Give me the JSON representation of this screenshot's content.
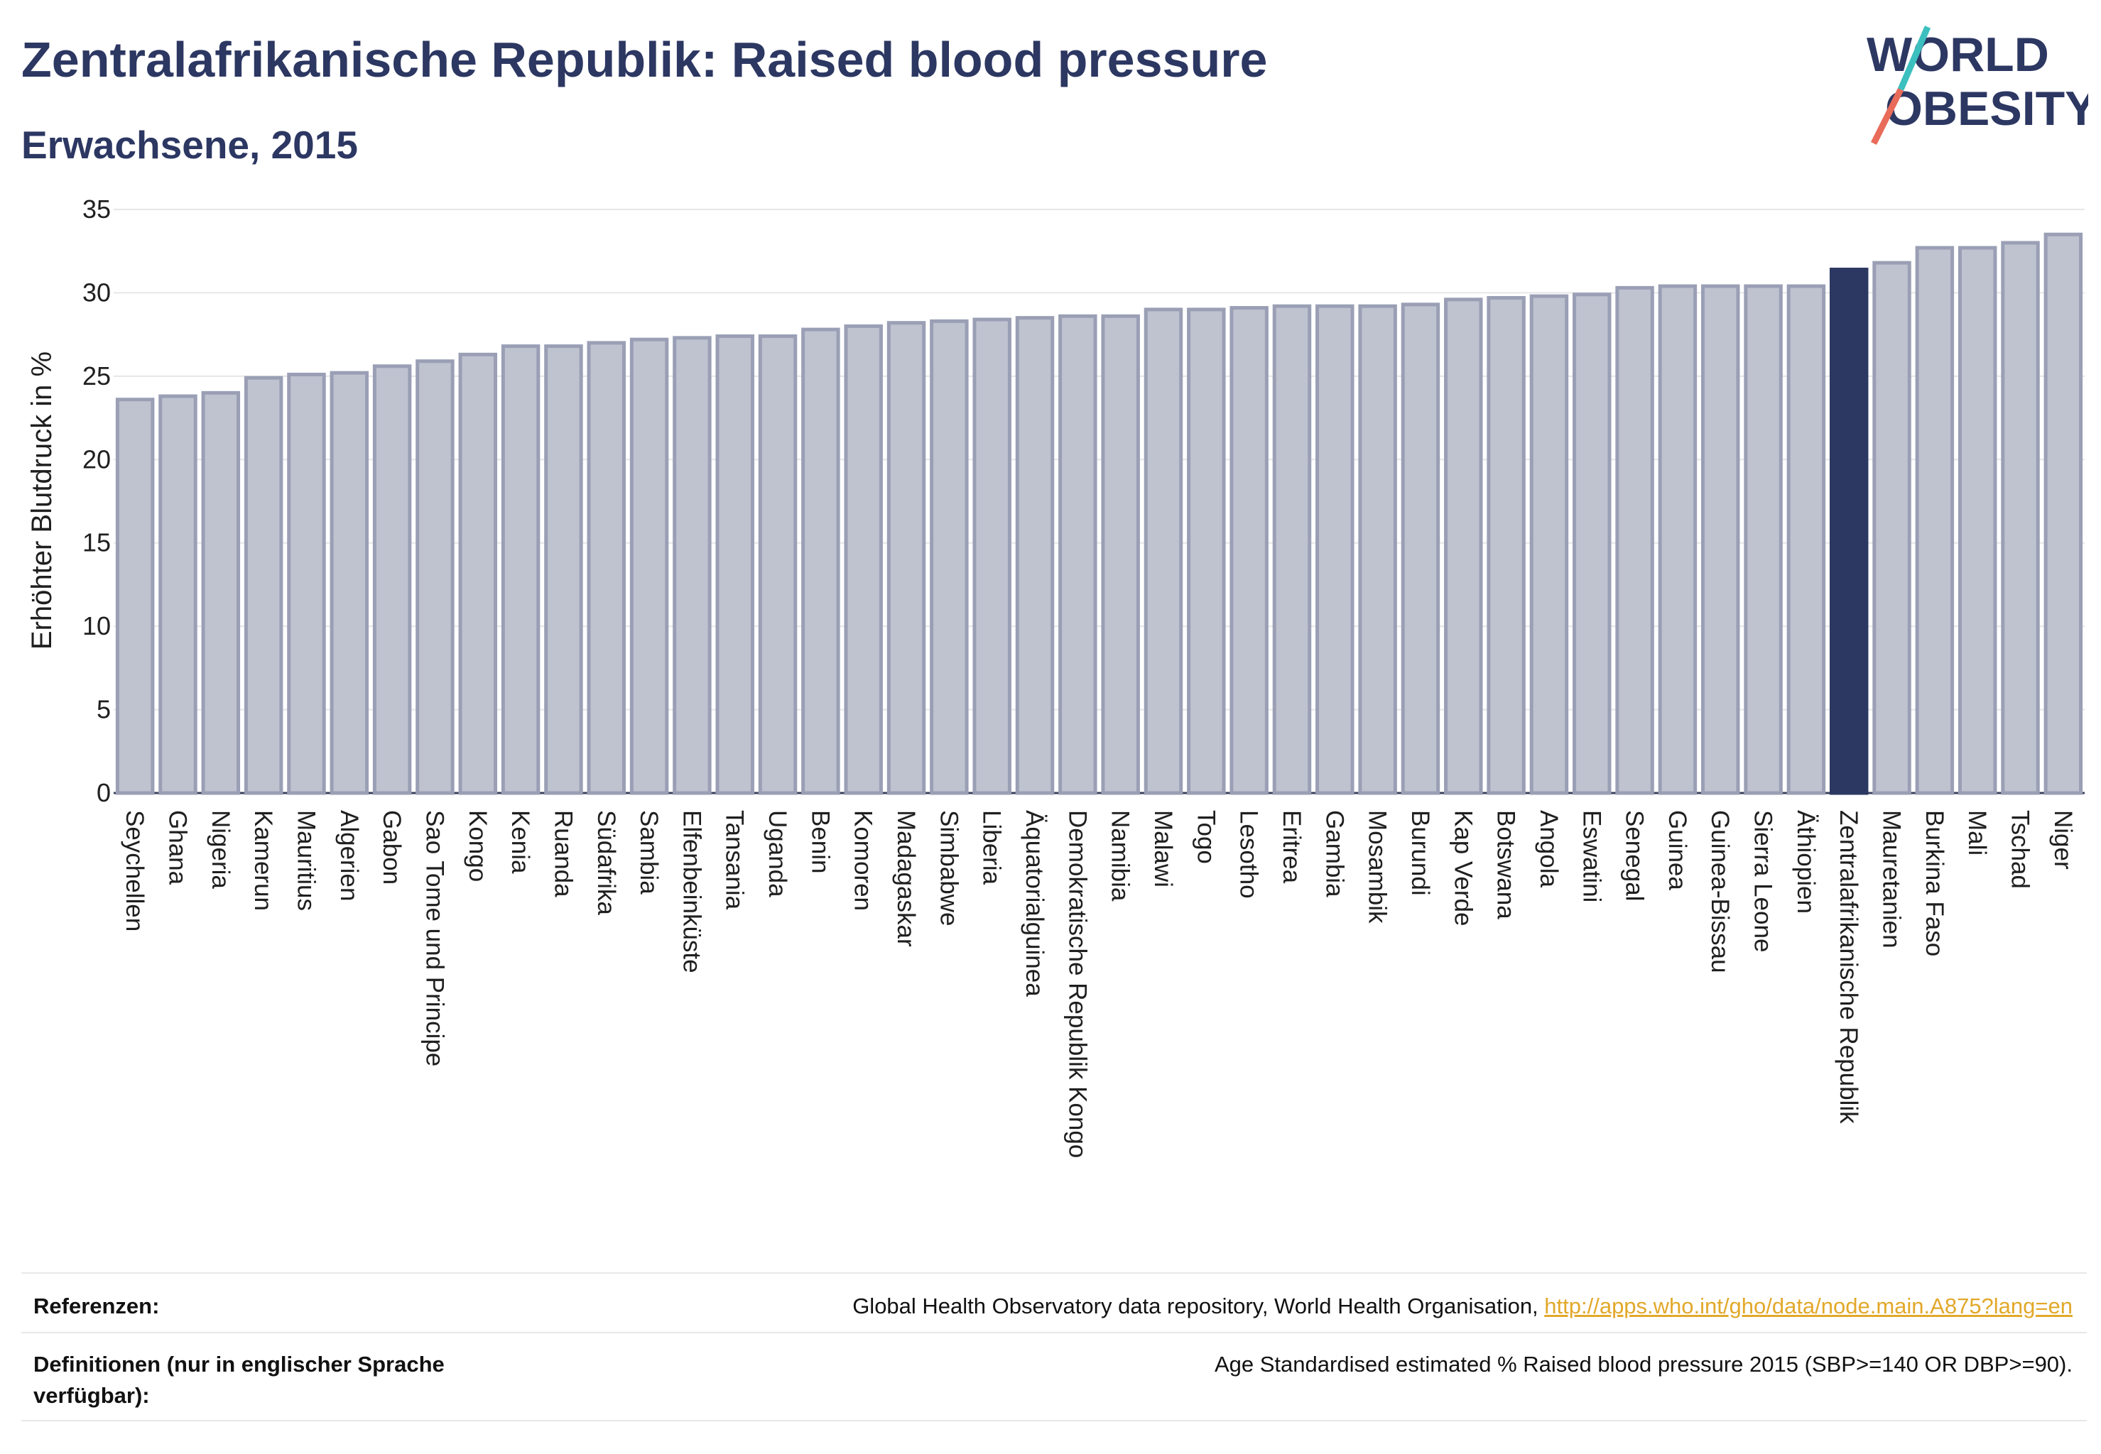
{
  "header": {
    "title": "Zentralafrikanische Republik: Raised blood pressure",
    "subtitle": "Erwachsene, 2015"
  },
  "logo": {
    "line1": "WORLD",
    "line2": "OBESITY"
  },
  "chart_data": {
    "type": "bar",
    "ylabel": "Erhöhter Blutdruck in %",
    "ylim": [
      0,
      35
    ],
    "yticks": [
      0,
      5,
      10,
      15,
      20,
      25,
      30,
      35
    ],
    "grid": true,
    "highlight": "Zentralafrikanische Republik",
    "colors": {
      "bar": "#bfc2cf",
      "bar_edge": "#9a9fb5",
      "highlight": "#2c3762"
    },
    "categories": [
      "Seychellen",
      "Ghana",
      "Nigeria",
      "Kamerun",
      "Mauritius",
      "Algerien",
      "Gabon",
      "Sao Tome und Principe",
      "Kongo",
      "Kenia",
      "Ruanda",
      "Südafrika",
      "Sambia",
      "Elfenbeinküste",
      "Tansania",
      "Uganda",
      "Benin",
      "Komoren",
      "Madagaskar",
      "Simbabwe",
      "Liberia",
      "Äquatorialguinea",
      "Demokratische Republik Kongo",
      "Namibia",
      "Malawi",
      "Togo",
      "Lesotho",
      "Eritrea",
      "Gambia",
      "Mosambik",
      "Burundi",
      "Kap Verde",
      "Botswana",
      "Angola",
      "Eswatini",
      "Senegal",
      "Guinea",
      "Guinea-Bissau",
      "Sierra Leone",
      "Äthiopien",
      "Zentralafrikanische Republik",
      "Mauretanien",
      "Burkina Faso",
      "Mali",
      "Tschad",
      "Niger"
    ],
    "values": [
      23.6,
      23.8,
      24.0,
      24.9,
      25.1,
      25.2,
      25.6,
      25.9,
      26.3,
      26.8,
      26.8,
      27.0,
      27.2,
      27.3,
      27.4,
      27.4,
      27.8,
      28.0,
      28.2,
      28.3,
      28.4,
      28.5,
      28.6,
      28.6,
      29.0,
      29.0,
      29.1,
      29.2,
      29.2,
      29.2,
      29.3,
      29.6,
      29.7,
      29.8,
      29.9,
      30.3,
      30.4,
      30.4,
      30.4,
      30.4,
      31.4,
      31.8,
      32.7,
      32.7,
      33.0,
      33.5
    ]
  },
  "footer": {
    "ref_label": "Referenzen:",
    "ref_text": "Global Health Observatory data repository, World Health Organisation, ",
    "ref_link": "http://apps.who.int/gho/data/node.main.A875?lang=en",
    "def_label_1": "Definitionen (nur in englischer Sprache",
    "def_label_2": "verfügbar):",
    "def_text": "Age Standardised estimated % Raised blood pressure 2015 (SBP>=140 OR DBP>=90)."
  }
}
